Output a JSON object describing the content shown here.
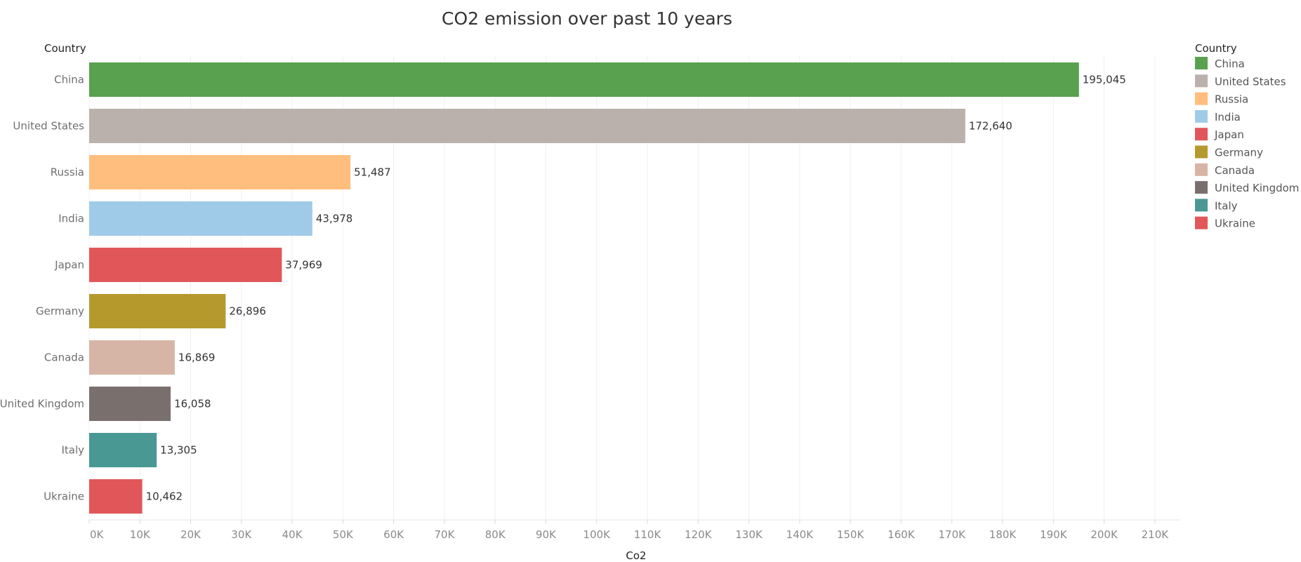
{
  "chart_data": {
    "type": "bar",
    "orientation": "horizontal",
    "title": "CO2 emission over past 10 years",
    "xlabel": "Co2",
    "ylabel": "Country",
    "categories": [
      "China",
      "United States",
      "Russia",
      "India",
      "Japan",
      "Germany",
      "Canada",
      "United Kingdom",
      "Italy",
      "Ukraine"
    ],
    "values": [
      195045,
      172640,
      51487,
      43978,
      37969,
      26896,
      16869,
      16058,
      13305,
      10462
    ],
    "value_labels": [
      "195,045",
      "172,640",
      "51,487",
      "43,978",
      "37,969",
      "26,896",
      "16,869",
      "16,058",
      "13,305",
      "10,462"
    ],
    "colors": [
      "#59a14f",
      "#bab0ac",
      "#ffbe7d",
      "#a0cbe8",
      "#e15759",
      "#b6992d",
      "#d7b5a6",
      "#79706e",
      "#499894",
      "#e15759"
    ],
    "xlim": [
      0,
      215000
    ],
    "x_ticks": [
      0,
      10000,
      20000,
      30000,
      40000,
      50000,
      60000,
      70000,
      80000,
      90000,
      100000,
      110000,
      120000,
      130000,
      140000,
      150000,
      160000,
      170000,
      180000,
      190000,
      200000,
      210000
    ],
    "x_tick_labels": [
      "0K",
      "10K",
      "20K",
      "30K",
      "40K",
      "50K",
      "60K",
      "70K",
      "80K",
      "90K",
      "100K",
      "110K",
      "120K",
      "130K",
      "140K",
      "150K",
      "160K",
      "170K",
      "180K",
      "190K",
      "200K",
      "210K"
    ],
    "grid": true,
    "legend": {
      "title": "Country",
      "position": "right",
      "entries": [
        "China",
        "United States",
        "Russia",
        "India",
        "Japan",
        "Germany",
        "Canada",
        "United Kingdom",
        "Italy",
        "Ukraine"
      ]
    }
  }
}
